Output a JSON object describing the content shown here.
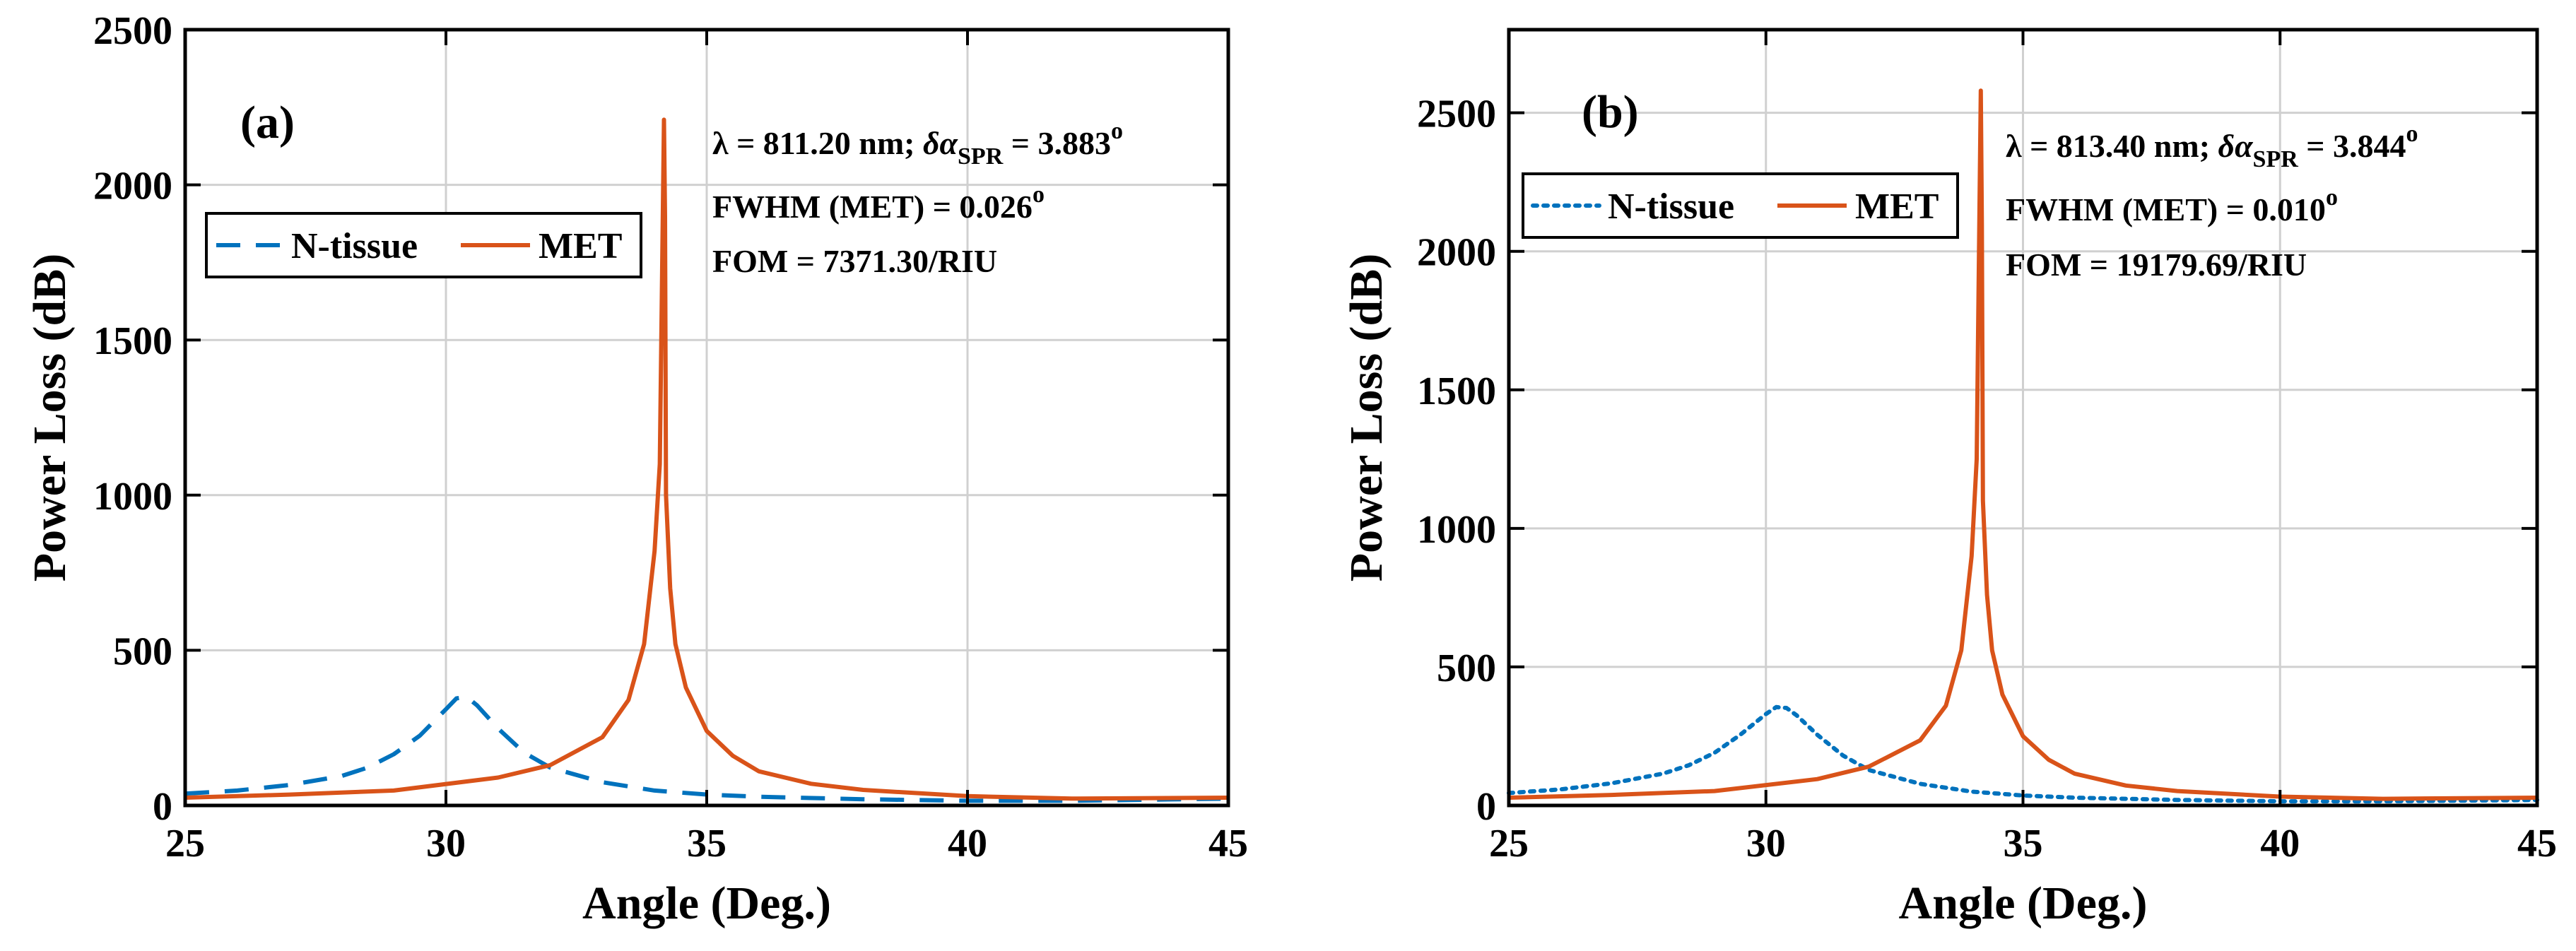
{
  "figure": {
    "colors": {
      "n_tissue": "#0072BD",
      "met": "#D95319",
      "grid": "#d0d0d0",
      "axis": "#000000"
    }
  },
  "chart_data": [
    {
      "type": "line",
      "panel_label": "(a)",
      "title": "",
      "xlabel": "Angle (Deg.)",
      "ylabel": "Power Loss (dB)",
      "xlim": [
        25,
        45
      ],
      "ylim": [
        0,
        2500
      ],
      "xticks": [
        25,
        30,
        35,
        40,
        45
      ],
      "yticks": [
        0,
        500,
        1000,
        1500,
        2000,
        2500
      ],
      "grid": true,
      "legend_position": "upper-left",
      "annotations": {
        "lambda_label": "λ = 811.20 nm; ",
        "delta_symbol": "δα",
        "delta_sub": "SPR",
        "delta_value": " = 3.883",
        "delta_sup": "o",
        "fwhm_text": "FWHM (MET) = 0.026",
        "fwhm_sup": "o",
        "fom_text": "FOM = 7371.30/RIU"
      },
      "series": [
        {
          "name": "N-tissue",
          "style": "dashed",
          "color": "#0072BD",
          "x": [
            25,
            26,
            27,
            28,
            28.5,
            29,
            29.5,
            30,
            30.2,
            30.4,
            30.6,
            31,
            31.5,
            32,
            33,
            34,
            35,
            36,
            38,
            40,
            42,
            45
          ],
          "y": [
            38,
            48,
            66,
            95,
            122,
            165,
            225,
            310,
            345,
            350,
            322,
            248,
            170,
            122,
            75,
            48,
            35,
            28,
            20,
            15,
            15,
            22
          ]
        },
        {
          "name": "MET",
          "style": "solid",
          "color": "#D95319",
          "x": [
            25,
            27,
            29,
            31,
            32,
            33,
            33.5,
            33.8,
            34.0,
            34.1,
            34.18,
            34.2,
            34.22,
            34.3,
            34.4,
            34.6,
            35,
            35.5,
            36,
            37,
            38,
            40,
            42,
            45
          ],
          "y": [
            25,
            35,
            48,
            90,
            130,
            220,
            340,
            520,
            820,
            1100,
            2210,
            1900,
            1000,
            700,
            520,
            380,
            240,
            160,
            110,
            70,
            50,
            30,
            22,
            25
          ]
        }
      ]
    },
    {
      "type": "line",
      "panel_label": "(b)",
      "title": "",
      "xlabel": "Angle (Deg.)",
      "ylabel": "Power Loss (dB)",
      "xlim": [
        25,
        45
      ],
      "ylim": [
        0,
        2800
      ],
      "xticks": [
        25,
        30,
        35,
        40,
        45
      ],
      "yticks": [
        0,
        500,
        1000,
        1500,
        2000,
        2500
      ],
      "grid": true,
      "legend_position": "upper-left",
      "annotations": {
        "lambda_label": "λ = 813.40 nm; ",
        "delta_symbol": "δα",
        "delta_sub": "SPR",
        "delta_value": " = 3.844",
        "delta_sup": "o",
        "fwhm_text": "FWHM (MET) = 0.010",
        "fwhm_sup": "o",
        "fom_text": "FOM = 19179.69/RIU"
      },
      "series": [
        {
          "name": "N-tissue",
          "style": "dotted",
          "color": "#0072BD",
          "x": [
            25,
            26,
            27,
            28,
            28.5,
            29,
            29.5,
            30,
            30.2,
            30.4,
            30.6,
            31,
            31.5,
            32,
            33,
            34,
            35,
            36,
            38,
            40,
            42,
            45
          ],
          "y": [
            45,
            58,
            80,
            115,
            145,
            190,
            255,
            330,
            355,
            352,
            325,
            255,
            180,
            128,
            78,
            50,
            36,
            28,
            20,
            15,
            15,
            20
          ]
        },
        {
          "name": "MET",
          "style": "solid",
          "color": "#D95319",
          "x": [
            25,
            27,
            29,
            31,
            32,
            33,
            33.5,
            33.8,
            34.0,
            34.1,
            34.18,
            34.2,
            34.22,
            34.3,
            34.4,
            34.6,
            35,
            35.5,
            36,
            37,
            38,
            40,
            42,
            45
          ],
          "y": [
            28,
            38,
            52,
            95,
            140,
            235,
            360,
            560,
            900,
            1250,
            2580,
            2100,
            1100,
            760,
            560,
            400,
            250,
            165,
            115,
            72,
            52,
            32,
            24,
            28
          ]
        }
      ]
    }
  ]
}
